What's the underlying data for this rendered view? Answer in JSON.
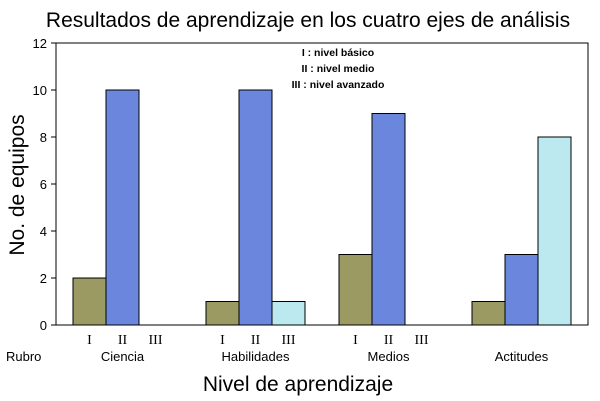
{
  "chart_data": {
    "type": "bar",
    "title": "Resultados de aprendizaje en los cuatro ejes de análisis",
    "xlabel": "Nivel de aprendizaje",
    "ylabel": "No. de equipos",
    "ylim": [
      0,
      12
    ],
    "yticks": [
      0,
      2,
      4,
      6,
      8,
      10,
      12
    ],
    "row_label": "Rubro",
    "categories": [
      "Ciencia",
      "Habilidades",
      "Medios",
      "Actitudes"
    ],
    "sublabels": [
      [
        "I",
        "II",
        "III"
      ],
      [
        "I",
        "II",
        "III"
      ],
      [
        "I",
        "II",
        "III"
      ],
      []
    ],
    "series": [
      {
        "name": "I",
        "color": "#9a9a62",
        "values": [
          2,
          1,
          3,
          1
        ]
      },
      {
        "name": "II",
        "color": "#6b87dd",
        "values": [
          10,
          10,
          9,
          3
        ]
      },
      {
        "name": "III",
        "color": "#bce8f0",
        "values": [
          0,
          1,
          0,
          8
        ]
      }
    ],
    "annotations": [
      "I : nivel básico",
      "II : nivel medio",
      "III : nivel avanzado"
    ]
  }
}
